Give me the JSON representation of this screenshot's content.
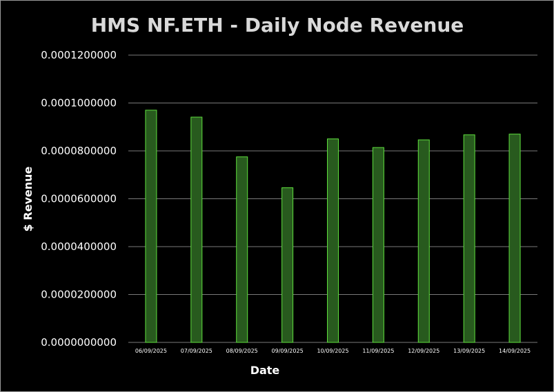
{
  "chart_data": {
    "type": "bar",
    "title": "HMS NF.ETH - Daily Node Revenue",
    "xlabel": "Date",
    "ylabel": "$ Revenue",
    "categories": [
      "06/09/2025",
      "07/09/2025",
      "08/09/2025",
      "09/09/2025",
      "10/09/2025",
      "11/09/2025",
      "12/09/2025",
      "13/09/2025",
      "14/09/2025"
    ],
    "values": [
      9.7e-05,
      9.41e-05,
      7.75e-05,
      6.46e-05,
      8.5e-05,
      8.14e-05,
      8.46e-05,
      8.67e-05,
      8.7e-05
    ],
    "ylim": [
      0,
      0.00012
    ],
    "yticks": [
      "0.0000000000",
      "0.0000200000",
      "0.0000400000",
      "0.0000600000",
      "0.0000800000",
      "0.0001000000",
      "0.0001200000"
    ],
    "grid": true,
    "colors": {
      "bar_fill": "#285a1e",
      "bar_edge": "#5fe03e",
      "grid": "#7a7a7a",
      "background": "#000000"
    }
  }
}
